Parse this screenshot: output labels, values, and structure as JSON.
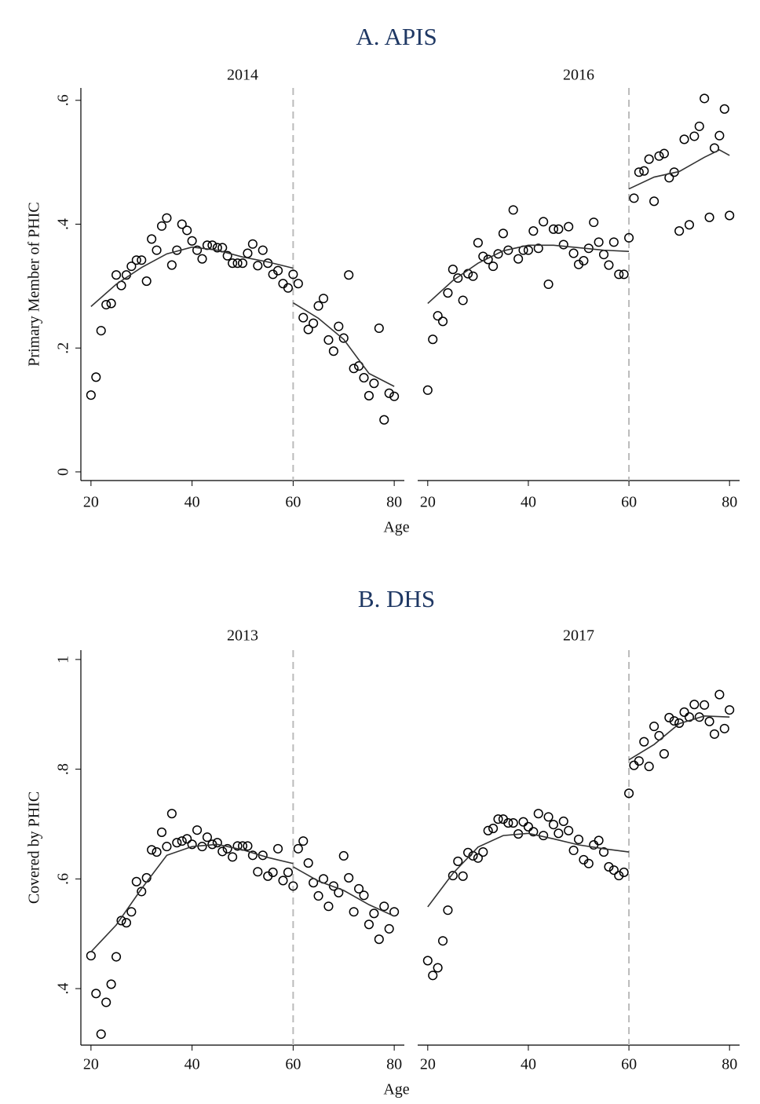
{
  "chart_data": [
    {
      "type": "scatter",
      "panel_title": "A. APIS",
      "title": "2014",
      "ylabel": "Primary Member of PHIC",
      "xlabel": "Age",
      "x": [
        20,
        21,
        22,
        23,
        24,
        25,
        26,
        27,
        28,
        29,
        30,
        31,
        32,
        33,
        34,
        35,
        36,
        37,
        38,
        39,
        40,
        41,
        42,
        43,
        44,
        45,
        46,
        47,
        48,
        49,
        50,
        51,
        52,
        53,
        54,
        55,
        56,
        57,
        58,
        59,
        60,
        61,
        62,
        63,
        64,
        65,
        66,
        67,
        68,
        69,
        70,
        71,
        72,
        73,
        74,
        75,
        76,
        77,
        78,
        79,
        80
      ],
      "values": [
        0.124,
        0.153,
        0.228,
        0.27,
        0.272,
        0.318,
        0.301,
        0.318,
        0.332,
        0.342,
        0.342,
        0.308,
        0.376,
        0.358,
        0.397,
        0.41,
        0.334,
        0.358,
        0.4,
        0.39,
        0.373,
        0.358,
        0.344,
        0.366,
        0.366,
        0.362,
        0.362,
        0.349,
        0.337,
        0.337,
        0.337,
        0.353,
        0.368,
        0.333,
        0.358,
        0.337,
        0.319,
        0.325,
        0.304,
        0.297,
        0.319,
        0.304,
        0.249,
        0.23,
        0.24,
        0.268,
        0.28,
        0.213,
        0.195,
        0.235,
        0.216,
        0.318,
        0.167,
        0.171,
        0.152,
        0.123,
        0.143,
        0.232,
        0.084,
        0.127,
        0.122
      ],
      "fit": {
        "x": [
          20,
          25,
          30,
          35,
          40,
          45,
          50,
          55,
          60,
          60,
          60,
          65,
          70,
          75,
          80
        ],
        "values": [
          0.267,
          0.303,
          0.33,
          0.352,
          0.363,
          0.358,
          0.347,
          0.339,
          0.329,
          null,
          0.273,
          0.248,
          0.214,
          0.159,
          0.138
        ]
      },
      "cutoff": 60,
      "xlim": [
        18,
        82
      ],
      "xticks": [
        20,
        40,
        60,
        80
      ],
      "ylim": [
        -0.014,
        0.62
      ],
      "yticks": [
        0,
        {
          "value": 0.2,
          "label": ".2"
        },
        {
          "value": 0.4,
          "label": ".4"
        },
        {
          "value": 0.6,
          "label": ".6"
        }
      ],
      "point_color": "#000000",
      "line_color": "#333333",
      "cutoff_color": "#bbbbbb"
    },
    {
      "type": "scatter",
      "title": "2016",
      "x": [
        20,
        21,
        22,
        23,
        24,
        25,
        26,
        27,
        28,
        29,
        30,
        31,
        32,
        33,
        34,
        35,
        36,
        37,
        38,
        39,
        40,
        41,
        42,
        43,
        44,
        45,
        46,
        47,
        48,
        49,
        50,
        51,
        52,
        53,
        54,
        55,
        56,
        57,
        58,
        59,
        60,
        61,
        62,
        63,
        64,
        65,
        66,
        67,
        68,
        69,
        70,
        71,
        72,
        73,
        74,
        75,
        76,
        77,
        78,
        79,
        80
      ],
      "values": [
        0.132,
        0.214,
        0.252,
        0.243,
        0.289,
        0.327,
        0.313,
        0.277,
        0.32,
        0.316,
        0.37,
        0.348,
        0.343,
        0.332,
        0.352,
        0.385,
        0.358,
        0.423,
        0.344,
        0.358,
        0.358,
        0.389,
        0.361,
        0.404,
        0.303,
        0.392,
        0.392,
        0.367,
        0.396,
        0.353,
        0.335,
        0.341,
        0.361,
        0.403,
        0.371,
        0.351,
        0.334,
        0.371,
        0.319,
        0.319,
        0.378,
        0.442,
        0.484,
        0.486,
        0.505,
        0.437,
        0.51,
        0.514,
        0.475,
        0.484,
        0.389,
        0.537,
        0.399,
        0.542,
        0.558,
        0.603,
        0.411,
        0.523,
        0.543,
        0.586,
        0.414
      ],
      "fit": {
        "x": [
          20,
          25,
          30,
          35,
          40,
          45,
          50,
          55,
          60,
          60,
          60,
          65,
          70,
          75,
          78,
          80
        ],
        "values": [
          0.272,
          0.309,
          0.337,
          0.357,
          0.366,
          0.366,
          0.362,
          0.358,
          0.356,
          null,
          0.457,
          0.476,
          0.485,
          0.508,
          0.52,
          0.511
        ]
      },
      "cutoff": 60,
      "xlim": [
        18,
        82
      ],
      "xticks": [
        20,
        40,
        60,
        80
      ],
      "ylim": [
        -0.014,
        0.62
      ],
      "point_color": "#000000",
      "line_color": "#333333",
      "cutoff_color": "#bbbbbb"
    },
    {
      "type": "scatter",
      "panel_title": "B. DHS",
      "title": "2013",
      "ylabel": "Covered by PHIC",
      "xlabel": "Age",
      "x": [
        20,
        21,
        22,
        23,
        24,
        25,
        26,
        27,
        28,
        29,
        30,
        31,
        32,
        33,
        34,
        35,
        36,
        37,
        38,
        39,
        40,
        41,
        42,
        43,
        44,
        45,
        46,
        47,
        48,
        49,
        50,
        51,
        52,
        53,
        54,
        55,
        56,
        57,
        58,
        59,
        60,
        61,
        62,
        63,
        64,
        65,
        66,
        67,
        68,
        69,
        70,
        71,
        72,
        73,
        74,
        75,
        76,
        77,
        78,
        79,
        80
      ],
      "values": [
        0.46,
        0.391,
        0.317,
        0.375,
        0.408,
        0.458,
        0.524,
        0.52,
        0.54,
        0.595,
        0.577,
        0.602,
        0.653,
        0.649,
        0.685,
        0.659,
        0.719,
        0.666,
        0.669,
        0.673,
        0.663,
        0.689,
        0.659,
        0.676,
        0.663,
        0.666,
        0.65,
        0.655,
        0.64,
        0.66,
        0.66,
        0.66,
        0.643,
        0.613,
        0.643,
        0.605,
        0.612,
        0.655,
        0.597,
        0.612,
        0.587,
        0.655,
        0.669,
        0.629,
        0.593,
        0.569,
        0.6,
        0.55,
        0.587,
        0.575,
        0.642,
        0.602,
        0.54,
        0.582,
        0.57,
        0.517,
        0.537,
        0.49,
        0.55,
        0.509,
        0.54
      ],
      "fit": {
        "x": [
          20,
          25,
          30,
          35,
          40,
          45,
          50,
          55,
          60,
          60,
          60,
          65,
          70,
          75,
          80
        ],
        "values": [
          0.467,
          0.516,
          0.582,
          0.643,
          0.659,
          0.663,
          0.653,
          0.639,
          0.628,
          null,
          0.622,
          0.596,
          0.579,
          0.553,
          0.532
        ]
      },
      "cutoff": 60,
      "xlim": [
        18,
        82
      ],
      "xticks": [
        20,
        40,
        60,
        80
      ],
      "ylim": [
        0.297,
        1.017
      ],
      "yticks": [
        {
          "value": 0.4,
          "label": ".4"
        },
        {
          "value": 0.6,
          "label": ".6"
        },
        {
          "value": 0.8,
          "label": ".8"
        },
        1
      ],
      "point_color": "#000000",
      "line_color": "#333333",
      "cutoff_color": "#bbbbbb"
    },
    {
      "type": "scatter",
      "title": "2017",
      "x": [
        20,
        21,
        22,
        23,
        24,
        25,
        26,
        27,
        28,
        29,
        30,
        31,
        32,
        33,
        34,
        35,
        36,
        37,
        38,
        39,
        40,
        41,
        42,
        43,
        44,
        45,
        46,
        47,
        48,
        49,
        50,
        51,
        52,
        53,
        54,
        55,
        56,
        57,
        58,
        59,
        60,
        61,
        62,
        63,
        64,
        65,
        66,
        67,
        68,
        69,
        70,
        71,
        72,
        73,
        74,
        75,
        76,
        77,
        78,
        79,
        80
      ],
      "values": [
        0.451,
        0.424,
        0.438,
        0.487,
        0.543,
        0.606,
        0.632,
        0.605,
        0.648,
        0.642,
        0.638,
        0.649,
        0.688,
        0.692,
        0.709,
        0.709,
        0.702,
        0.702,
        0.682,
        0.704,
        0.695,
        0.686,
        0.719,
        0.679,
        0.713,
        0.699,
        0.683,
        0.705,
        0.688,
        0.652,
        0.672,
        0.635,
        0.628,
        0.662,
        0.67,
        0.649,
        0.622,
        0.616,
        0.606,
        0.612,
        0.756,
        0.807,
        0.815,
        0.85,
        0.805,
        0.878,
        0.861,
        0.828,
        0.894,
        0.888,
        0.884,
        0.904,
        0.895,
        0.918,
        0.895,
        0.917,
        0.887,
        0.864,
        0.936,
        0.874,
        0.908
      ],
      "fit": {
        "x": [
          20,
          25,
          30,
          35,
          40,
          45,
          50,
          55,
          60,
          60,
          60,
          65,
          70,
          75,
          80
        ],
        "values": [
          0.549,
          0.61,
          0.658,
          0.679,
          0.683,
          0.673,
          0.662,
          0.655,
          0.649,
          null,
          0.817,
          0.845,
          0.883,
          0.897,
          0.895
        ]
      },
      "cutoff": 60,
      "xlim": [
        18,
        82
      ],
      "xticks": [
        20,
        40,
        60,
        80
      ],
      "ylim": [
        0.297,
        1.017
      ],
      "point_color": "#000000",
      "line_color": "#333333",
      "cutoff_color": "#bbbbbb"
    }
  ]
}
